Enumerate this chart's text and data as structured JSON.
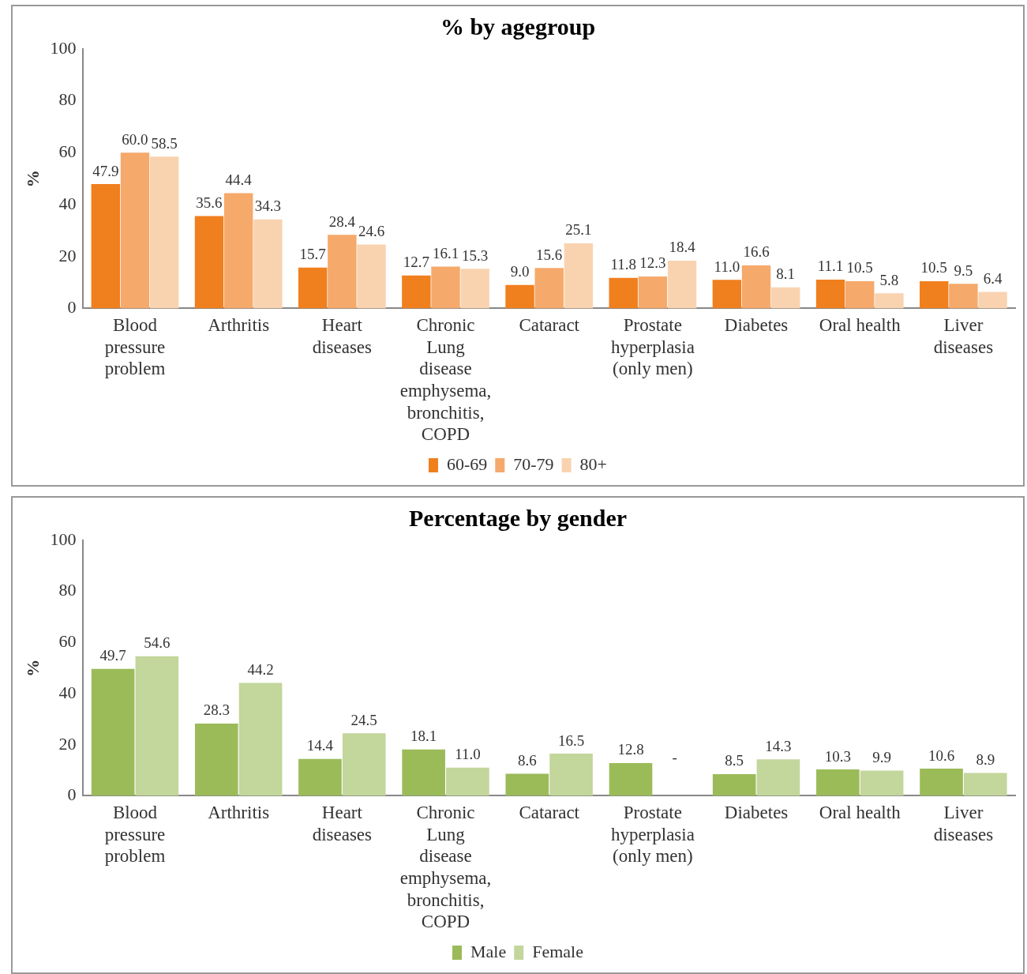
{
  "chart_data": [
    {
      "type": "bar",
      "title": "% by agegroup",
      "ylabel": "%",
      "categories": [
        "Blood pressure problem",
        "Arthritis",
        "Heart diseases",
        "Chronic Lung disease emphysema, bronchitis, COPD",
        "Cataract",
        "Prostate hyperplasia (only men)",
        "Diabetes",
        "Oral health",
        "Liver diseases"
      ],
      "series": [
        {
          "name": "60-69",
          "color": "#f07f1e",
          "values": [
            47.9,
            35.6,
            15.7,
            12.7,
            9.0,
            11.8,
            11.0,
            11.1,
            10.5
          ],
          "value_labels": [
            "47.9",
            "35.6",
            "15.7",
            "12.7",
            "9.0",
            "11.8",
            "11.0",
            "11.1",
            "10.5"
          ]
        },
        {
          "name": "70-79",
          "color": "#f5a96b",
          "values": [
            60.0,
            44.4,
            28.4,
            16.1,
            15.6,
            12.3,
            16.6,
            10.5,
            9.5
          ],
          "value_labels": [
            "60.0",
            "44.4",
            "28.4",
            "16.1",
            "15.6",
            "12.3",
            "16.6",
            "10.5",
            "9.5"
          ]
        },
        {
          "name": "80+",
          "color": "#f9d3b0",
          "values": [
            58.5,
            34.3,
            24.6,
            15.3,
            25.1,
            18.4,
            8.1,
            5.8,
            6.4
          ],
          "value_labels": [
            "58.5",
            "34.3",
            "24.6",
            "15.3",
            "25.1",
            "18.4",
            "8.1",
            "5.8",
            "6.4"
          ]
        }
      ],
      "ylim": [
        0,
        100
      ],
      "yticks": [
        0,
        20,
        40,
        60,
        80,
        100
      ],
      "grid": false,
      "legend": "bottom"
    },
    {
      "type": "bar",
      "title": "Percentage by gender",
      "ylabel": "%",
      "categories": [
        "Blood pressure problem",
        "Arthritis",
        "Heart diseases",
        "Chronic Lung disease emphysema, bronchitis, COPD",
        "Cataract",
        "Prostate hyperplasia (only men)",
        "Diabetes",
        "Oral health",
        "Liver diseases"
      ],
      "series": [
        {
          "name": "Male",
          "color": "#9bbb59",
          "values": [
            49.7,
            28.3,
            14.4,
            18.1,
            8.6,
            12.8,
            8.5,
            10.3,
            10.6
          ],
          "value_labels": [
            "49.7",
            "28.3",
            "14.4",
            "18.1",
            "8.6",
            "12.8",
            "8.5",
            "10.3",
            "10.6"
          ]
        },
        {
          "name": "Female",
          "color": "#c3d69b",
          "values": [
            54.6,
            44.2,
            24.5,
            11.0,
            16.5,
            null,
            14.3,
            9.9,
            8.9
          ],
          "value_labels": [
            "54.6",
            "44.2",
            "24.5",
            "11.0",
            "16.5",
            "-",
            "14.3",
            "9.9",
            "8.9"
          ]
        }
      ],
      "ylim": [
        0,
        100
      ],
      "yticks": [
        0,
        20,
        40,
        60,
        80,
        100
      ],
      "grid": false,
      "legend": "bottom"
    }
  ]
}
